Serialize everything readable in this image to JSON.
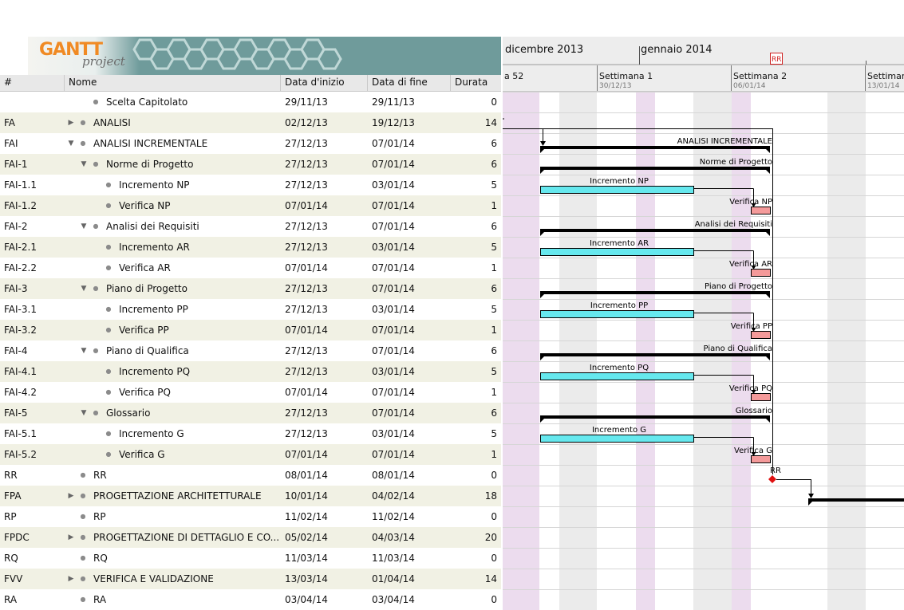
{
  "app": {
    "logo_text": "GANTT",
    "logo_sub": "project"
  },
  "columns": {
    "id": "#",
    "name": "Nome",
    "start": "Data d'inizio",
    "end": "Data di fine",
    "duration": "Durata"
  },
  "tasks": [
    {
      "id": "",
      "name": "Scelta Capitolato",
      "start": "29/11/13",
      "end": "29/11/13",
      "dur": "0",
      "level": 1,
      "toggle": ""
    },
    {
      "id": "FA",
      "name": "ANALISI",
      "start": "02/12/13",
      "end": "19/12/13",
      "dur": "14",
      "level": 0,
      "toggle": "collapsed"
    },
    {
      "id": "FAI",
      "name": "ANALISI INCREMENTALE",
      "start": "27/12/13",
      "end": "07/01/14",
      "dur": "6",
      "level": 0,
      "toggle": "expanded"
    },
    {
      "id": "FAI-1",
      "name": "Norme di Progetto",
      "start": "27/12/13",
      "end": "07/01/14",
      "dur": "6",
      "level": 1,
      "toggle": "expanded"
    },
    {
      "id": "FAI-1.1",
      "name": "Incremento NP",
      "start": "27/12/13",
      "end": "03/01/14",
      "dur": "5",
      "level": 2,
      "toggle": ""
    },
    {
      "id": "FAI-1.2",
      "name": "Verifica NP",
      "start": "07/01/14",
      "end": "07/01/14",
      "dur": "1",
      "level": 2,
      "toggle": ""
    },
    {
      "id": "FAI-2",
      "name": "Analisi dei Requisiti",
      "start": "27/12/13",
      "end": "07/01/14",
      "dur": "6",
      "level": 1,
      "toggle": "expanded"
    },
    {
      "id": "FAI-2.1",
      "name": "Incremento AR",
      "start": "27/12/13",
      "end": "03/01/14",
      "dur": "5",
      "level": 2,
      "toggle": ""
    },
    {
      "id": "FAI-2.2",
      "name": "Verifica AR",
      "start": "07/01/14",
      "end": "07/01/14",
      "dur": "1",
      "level": 2,
      "toggle": ""
    },
    {
      "id": "FAI-3",
      "name": "Piano di Progetto",
      "start": "27/12/13",
      "end": "07/01/14",
      "dur": "6",
      "level": 1,
      "toggle": "expanded"
    },
    {
      "id": "FAI-3.1",
      "name": "Incremento PP",
      "start": "27/12/13",
      "end": "03/01/14",
      "dur": "5",
      "level": 2,
      "toggle": ""
    },
    {
      "id": "FAI-3.2",
      "name": "Verifica PP",
      "start": "07/01/14",
      "end": "07/01/14",
      "dur": "1",
      "level": 2,
      "toggle": ""
    },
    {
      "id": "FAI-4",
      "name": "Piano di Qualifica",
      "start": "27/12/13",
      "end": "07/01/14",
      "dur": "6",
      "level": 1,
      "toggle": "expanded"
    },
    {
      "id": "FAI-4.1",
      "name": "Incremento PQ",
      "start": "27/12/13",
      "end": "03/01/14",
      "dur": "5",
      "level": 2,
      "toggle": ""
    },
    {
      "id": "FAI-4.2",
      "name": "Verifica PQ",
      "start": "07/01/14",
      "end": "07/01/14",
      "dur": "1",
      "level": 2,
      "toggle": ""
    },
    {
      "id": "FAI-5",
      "name": "Glossario",
      "start": "27/12/13",
      "end": "07/01/14",
      "dur": "6",
      "level": 1,
      "toggle": "expanded"
    },
    {
      "id": "FAI-5.1",
      "name": "Incremento G",
      "start": "27/12/13",
      "end": "03/01/14",
      "dur": "5",
      "level": 2,
      "toggle": ""
    },
    {
      "id": "FAI-5.2",
      "name": "Verifica G",
      "start": "07/01/14",
      "end": "07/01/14",
      "dur": "1",
      "level": 2,
      "toggle": ""
    },
    {
      "id": "RR",
      "name": "RR",
      "start": "08/01/14",
      "end": "08/01/14",
      "dur": "0",
      "level": 0,
      "toggle": ""
    },
    {
      "id": "FPA",
      "name": "PROGETTAZIONE ARCHITETTURALE",
      "start": "10/01/14",
      "end": "04/02/14",
      "dur": "18",
      "level": 0,
      "toggle": "collapsed"
    },
    {
      "id": "RP",
      "name": "RP",
      "start": "11/02/14",
      "end": "11/02/14",
      "dur": "0",
      "level": 0,
      "toggle": ""
    },
    {
      "id": "FPDC",
      "name": "PROGETTAZIONE DI DETTAGLIO E CO...",
      "start": "05/02/14",
      "end": "04/03/14",
      "dur": "20",
      "level": 0,
      "toggle": "collapsed"
    },
    {
      "id": "RQ",
      "name": "RQ",
      "start": "11/03/14",
      "end": "11/03/14",
      "dur": "0",
      "level": 0,
      "toggle": ""
    },
    {
      "id": "FVV",
      "name": "VERIFICA E VALIDAZIONE",
      "start": "13/03/14",
      "end": "01/04/14",
      "dur": "14",
      "level": 0,
      "toggle": "collapsed"
    },
    {
      "id": "RA",
      "name": "RA",
      "start": "03/04/14",
      "end": "03/04/14",
      "dur": "0",
      "level": 0,
      "toggle": ""
    }
  ],
  "timeline": {
    "months": [
      "dicembre 2013",
      "gennaio 2014"
    ],
    "weeks": [
      {
        "label": "a 52",
        "date": ""
      },
      {
        "label": "Settimana 1",
        "date": "30/12/13"
      },
      {
        "label": "Settimana 2",
        "date": "06/01/14"
      },
      {
        "label": "Settiman",
        "date": "13/01/14"
      }
    ],
    "milestone_flag": "RR"
  },
  "bar_labels": [
    "ANALISI INCREMENTALE",
    "Norme di Progetto",
    "Incremento NP",
    "Verifica NP",
    "Analisi dei Requisiti",
    "Incremento AR",
    "Verifica AR",
    "Piano di Progetto",
    "Incremento PP",
    "Verifica PP",
    "Piano di Qualifica",
    "Incremento PQ",
    "Verifica PQ",
    "Glossario",
    "Incremento G",
    "Verifica G",
    "RR"
  ],
  "colors": {
    "accent": "#f08a24",
    "increment": "#66e8ee",
    "verify": "#f49a9a",
    "milestone": "#e01010",
    "weekend": "#ebebeb",
    "holiday": "#ecdcee",
    "row_alt": "#f1f1e4"
  }
}
